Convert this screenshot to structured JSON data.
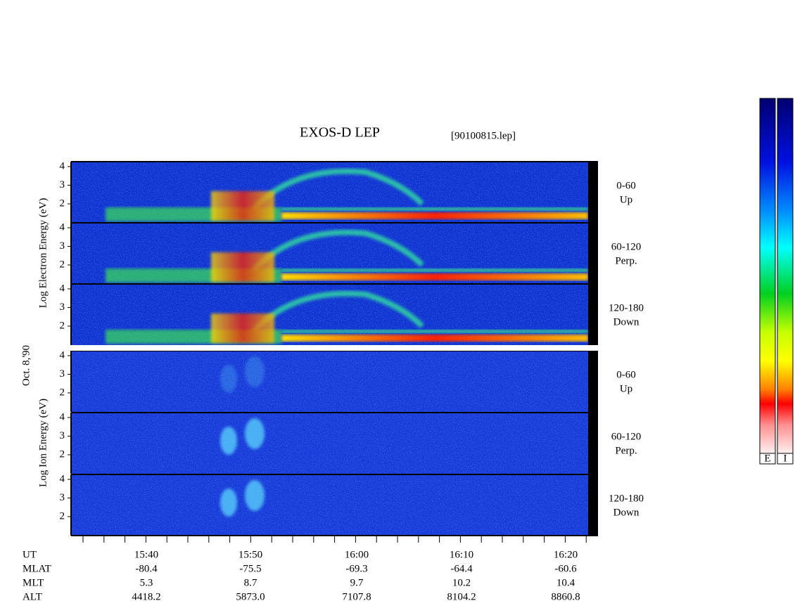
{
  "header": {
    "title": "EXOS-D LEP",
    "file": "[90100815.lep]"
  },
  "left_labels": {
    "electron": "Log  Electron  Energy (eV)",
    "date": "Oct. 8,'90",
    "ion": "Log  Ion  Energy (eV)"
  },
  "panels": [
    {
      "species": "electron",
      "y_labels": [
        "4",
        "3",
        "2"
      ],
      "angle": "0-60",
      "direction": "Up"
    },
    {
      "species": "electron",
      "y_labels": [
        "4",
        "3",
        "2"
      ],
      "angle": "60-120",
      "direction": "Perp."
    },
    {
      "species": "electron",
      "y_labels": [
        "4",
        "3",
        "2"
      ],
      "angle": "120-180",
      "direction": "Down"
    },
    {
      "species": "ion",
      "y_labels": [
        "4",
        "3",
        "2"
      ],
      "angle": "0-60",
      "direction": "Up"
    },
    {
      "species": "ion",
      "y_labels": [
        "4",
        "3",
        "2"
      ],
      "angle": "60-120",
      "direction": "Perp."
    },
    {
      "species": "ion",
      "y_labels": [
        "4",
        "3",
        "2"
      ],
      "angle": "120-180",
      "direction": "Down"
    }
  ],
  "time_axis": {
    "rows": [
      {
        "name": "UT",
        "values": [
          "15:40",
          "15:50",
          "16:00",
          "16:10",
          "16:20"
        ]
      },
      {
        "name": "MLAT",
        "values": [
          "-80.4",
          "-75.5",
          "-69.3",
          "-64.4",
          "-60.6"
        ]
      },
      {
        "name": "MLT",
        "values": [
          "5.3",
          "8.7",
          "9.7",
          "10.2",
          "10.4"
        ]
      },
      {
        "name": "ALT",
        "values": [
          "4418.2",
          "5873.0",
          "7107.8",
          "8104.2",
          "8860.8"
        ]
      }
    ]
  },
  "color_bars": [
    "E",
    "I"
  ]
}
